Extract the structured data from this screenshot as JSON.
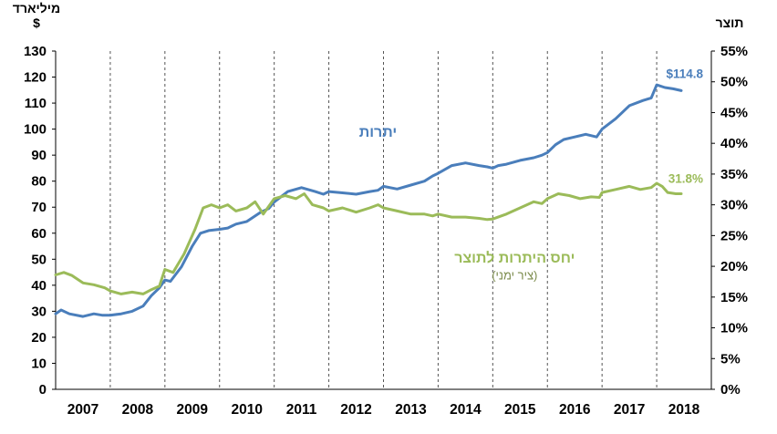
{
  "chart_data": {
    "type": "line",
    "left_axis_unit": "מיליארד",
    "left_axis_currency": "$",
    "right_axis_unit": "תוצר",
    "x_range": [
      2007,
      2019
    ],
    "x_tick_labels": [
      "2007",
      "2008",
      "2009",
      "2010",
      "2011",
      "2012",
      "2013",
      "2014",
      "2015",
      "2016",
      "2017",
      "2018"
    ],
    "y_left": {
      "min": 0,
      "max": 130,
      "step": 10,
      "tick_labels": [
        "0",
        "10",
        "20",
        "30",
        "40",
        "50",
        "60",
        "70",
        "80",
        "90",
        "100",
        "110",
        "120",
        "130"
      ]
    },
    "y_right": {
      "min": 0,
      "max": 55,
      "step": 5,
      "tick_labels": [
        "0%",
        "5%",
        "10%",
        "15%",
        "20%",
        "25%",
        "30%",
        "35%",
        "40%",
        "45%",
        "50%",
        "55%"
      ]
    },
    "vertical_gridlines": "dashed at each year start",
    "horizontal_gridlines": false,
    "series": [
      {
        "name": "יתרות",
        "axis": "left",
        "color": "#4a7ebb",
        "end_label": "$114.8",
        "points": [
          [
            2007.0,
            29
          ],
          [
            2007.1,
            30.5
          ],
          [
            2007.25,
            29
          ],
          [
            2007.5,
            28
          ],
          [
            2007.7,
            29
          ],
          [
            2007.85,
            28.5
          ],
          [
            2008.0,
            28.5
          ],
          [
            2008.2,
            29
          ],
          [
            2008.4,
            30
          ],
          [
            2008.6,
            32
          ],
          [
            2008.75,
            36
          ],
          [
            2008.9,
            39
          ],
          [
            2009.0,
            42
          ],
          [
            2009.1,
            41.5
          ],
          [
            2009.3,
            47
          ],
          [
            2009.5,
            55
          ],
          [
            2009.65,
            60
          ],
          [
            2009.8,
            61
          ],
          [
            2010.0,
            61.5
          ],
          [
            2010.15,
            62
          ],
          [
            2010.3,
            63.5
          ],
          [
            2010.5,
            64.5
          ],
          [
            2010.75,
            68
          ],
          [
            2010.9,
            69.5
          ],
          [
            2011.0,
            72
          ],
          [
            2011.25,
            76
          ],
          [
            2011.5,
            77.5
          ],
          [
            2011.75,
            76
          ],
          [
            2011.9,
            75
          ],
          [
            2012.0,
            76
          ],
          [
            2012.25,
            75.5
          ],
          [
            2012.5,
            75
          ],
          [
            2012.75,
            76
          ],
          [
            2012.9,
            76.5
          ],
          [
            2013.0,
            78
          ],
          [
            2013.25,
            77
          ],
          [
            2013.5,
            78.5
          ],
          [
            2013.75,
            80
          ],
          [
            2013.9,
            82
          ],
          [
            2014.0,
            83
          ],
          [
            2014.25,
            86
          ],
          [
            2014.5,
            87
          ],
          [
            2014.75,
            86
          ],
          [
            2014.9,
            85.5
          ],
          [
            2015.0,
            85
          ],
          [
            2015.1,
            86
          ],
          [
            2015.25,
            86.5
          ],
          [
            2015.5,
            88
          ],
          [
            2015.75,
            89
          ],
          [
            2015.9,
            90
          ],
          [
            2016.0,
            91
          ],
          [
            2016.15,
            94
          ],
          [
            2016.3,
            96
          ],
          [
            2016.5,
            97
          ],
          [
            2016.7,
            98
          ],
          [
            2016.9,
            97
          ],
          [
            2017.0,
            100
          ],
          [
            2017.25,
            104
          ],
          [
            2017.5,
            109
          ],
          [
            2017.75,
            111
          ],
          [
            2017.9,
            112
          ],
          [
            2018.0,
            117
          ],
          [
            2018.15,
            116
          ],
          [
            2018.3,
            115.5
          ],
          [
            2018.45,
            114.8
          ]
        ]
      },
      {
        "name": "יחס היתרות לתוצר",
        "sublabel": "(ציר ימני)",
        "axis": "right",
        "color": "#9bbb59",
        "end_label": "31.8%",
        "points": [
          [
            2007.0,
            18.6
          ],
          [
            2007.15,
            19
          ],
          [
            2007.3,
            18.5
          ],
          [
            2007.5,
            17.3
          ],
          [
            2007.7,
            17
          ],
          [
            2007.9,
            16.5
          ],
          [
            2008.0,
            16
          ],
          [
            2008.2,
            15.5
          ],
          [
            2008.4,
            15.8
          ],
          [
            2008.6,
            15.5
          ],
          [
            2008.75,
            16.2
          ],
          [
            2008.9,
            16.8
          ],
          [
            2009.0,
            19.5
          ],
          [
            2009.15,
            19
          ],
          [
            2009.35,
            22
          ],
          [
            2009.55,
            26
          ],
          [
            2009.7,
            29.5
          ],
          [
            2009.85,
            30
          ],
          [
            2010.0,
            29.5
          ],
          [
            2010.15,
            30
          ],
          [
            2010.3,
            29
          ],
          [
            2010.5,
            29.5
          ],
          [
            2010.65,
            30.5
          ],
          [
            2010.8,
            28.5
          ],
          [
            2011.0,
            31
          ],
          [
            2011.2,
            31.5
          ],
          [
            2011.4,
            31
          ],
          [
            2011.55,
            31.8
          ],
          [
            2011.7,
            30
          ],
          [
            2011.9,
            29.5
          ],
          [
            2012.0,
            29
          ],
          [
            2012.25,
            29.5
          ],
          [
            2012.5,
            28.8
          ],
          [
            2012.75,
            29.5
          ],
          [
            2012.9,
            30
          ],
          [
            2013.0,
            29.5
          ],
          [
            2013.25,
            29
          ],
          [
            2013.5,
            28.5
          ],
          [
            2013.75,
            28.5
          ],
          [
            2013.9,
            28.2
          ],
          [
            2014.0,
            28.5
          ],
          [
            2014.25,
            28
          ],
          [
            2014.5,
            28
          ],
          [
            2014.75,
            27.8
          ],
          [
            2014.9,
            27.6
          ],
          [
            2015.0,
            27.7
          ],
          [
            2015.25,
            28.5
          ],
          [
            2015.5,
            29.5
          ],
          [
            2015.75,
            30.5
          ],
          [
            2015.9,
            30.2
          ],
          [
            2016.0,
            31
          ],
          [
            2016.2,
            31.8
          ],
          [
            2016.4,
            31.5
          ],
          [
            2016.6,
            31
          ],
          [
            2016.8,
            31.3
          ],
          [
            2016.95,
            31.2
          ],
          [
            2017.0,
            32
          ],
          [
            2017.25,
            32.5
          ],
          [
            2017.5,
            33
          ],
          [
            2017.7,
            32.5
          ],
          [
            2017.9,
            32.8
          ],
          [
            2018.0,
            33.5
          ],
          [
            2018.1,
            33
          ],
          [
            2018.2,
            32
          ],
          [
            2018.35,
            31.8
          ],
          [
            2018.45,
            31.8
          ]
        ]
      }
    ]
  }
}
